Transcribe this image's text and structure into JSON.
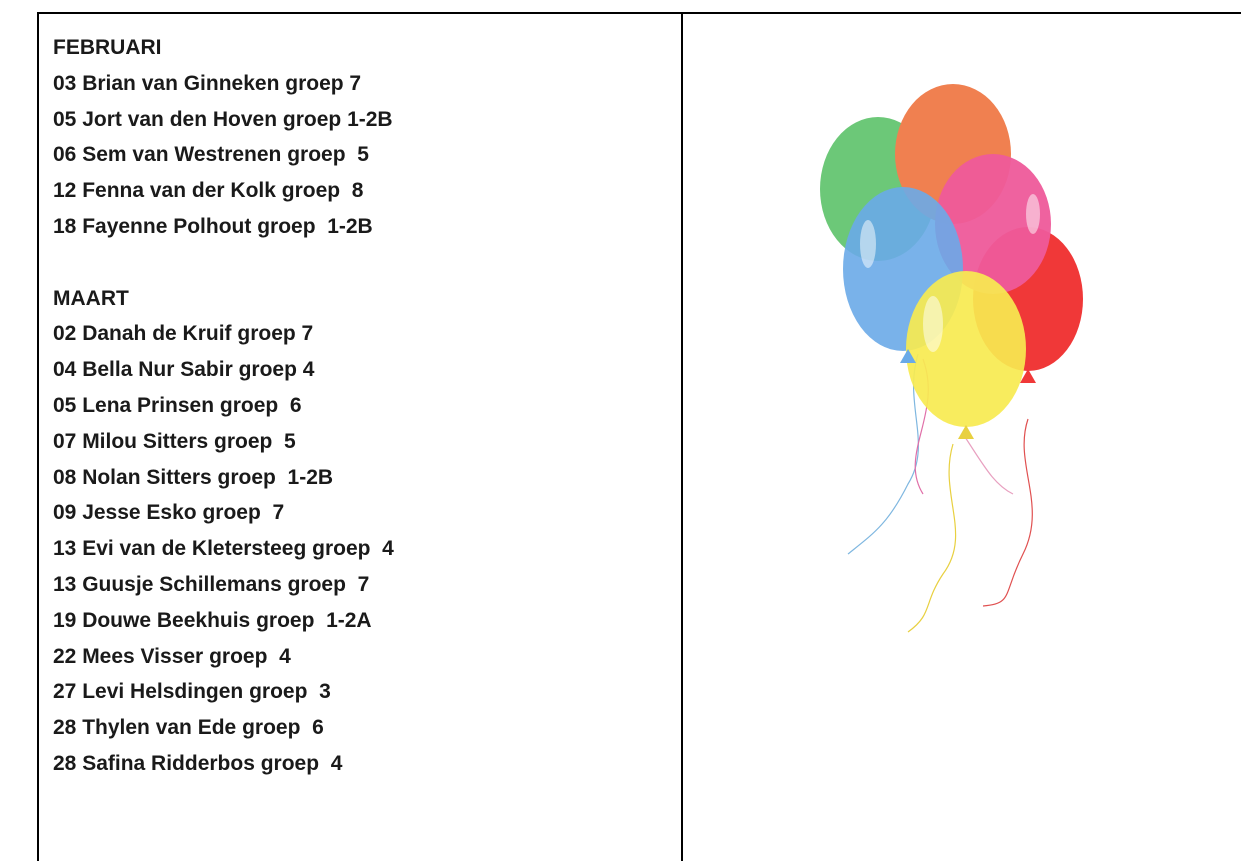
{
  "sections": [
    {
      "title": "FEBRUARI",
      "entries": [
        "03 Brian van Ginneken groep 7",
        "05 Jort van den Hoven groep 1-2B",
        "06 Sem van Westrenen groep  5",
        "12 Fenna van der Kolk groep  8",
        "18 Fayenne Polhout groep  1-2B"
      ]
    },
    {
      "title": "MAART",
      "entries": [
        "02 Danah de Kruif groep 7",
        "04 Bella Nur Sabir groep 4",
        "05 Lena Prinsen groep  6",
        "07 Milou Sitters groep  5",
        "08 Nolan Sitters groep  1-2B",
        "09 Jesse Esko groep  7",
        "13 Evi van de Kletersteeg groep  4",
        "13 Guusje Schillemans groep  7",
        "19 Douwe Beekhuis groep  1-2A",
        "22 Mees Visser groep  4",
        "27 Levi Helsdingen groep  3",
        "28 Thylen van Ede groep  6",
        "28 Safina Ridderbos groep  4"
      ]
    }
  ]
}
